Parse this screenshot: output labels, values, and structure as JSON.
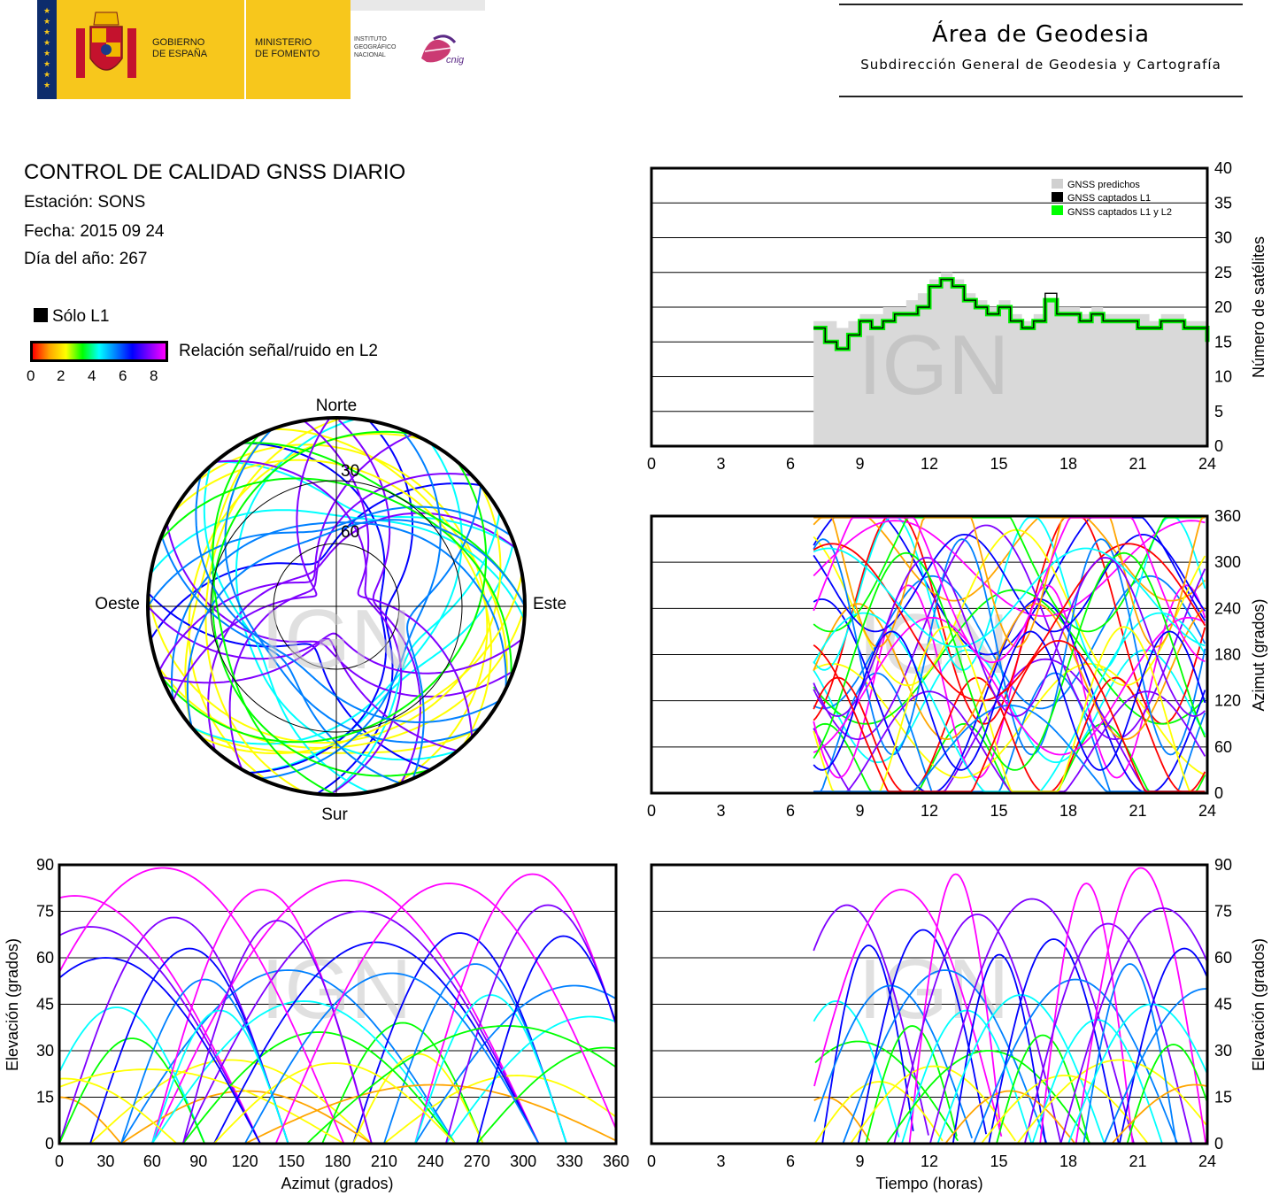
{
  "header": {
    "logo_gov_line1": "GOBIERNO",
    "logo_gov_line2": "DE ESPAÑA",
    "logo_min_line1": "MINISTERIO",
    "logo_min_line2": "DE FOMENTO",
    "logo_ign_line1": "INSTITUTO",
    "logo_ign_line2": "GEOGRÁFICO",
    "logo_ign_line3": "NACIONAL",
    "logo_cnig": "cnig",
    "area_title": "Área de Geodesia",
    "area_subtitle": "Subdirección General de Geodesia y Cartografía",
    "colors": {
      "gov_yellow": "#f7c71c",
      "flag_red": "#c4122d",
      "flag_blue": "#0d2c6c",
      "cnig_magenta": "#c2185b"
    }
  },
  "report": {
    "title": "CONTROL DE CALIDAD GNSS DIARIO",
    "station": "Estación: SONS",
    "date": "Fecha: 2015 09 24",
    "doy": "Día del año: 267"
  },
  "legend": {
    "only_l1": "Sólo L1",
    "snr_label": "Relación señal/ruido en L2",
    "snr_ticks": [
      "0",
      "2",
      "4",
      "6",
      "8"
    ],
    "snr_colors": [
      "#ff0000",
      "#ffa500",
      "#ffff00",
      "#00ff00",
      "#00ffff",
      "#0080ff",
      "#0000ff",
      "#8000ff",
      "#ff00ff"
    ]
  },
  "watermark": "IGN",
  "charts": {
    "satellites": {
      "y_ticks": [
        "0",
        "5",
        "10",
        "15",
        "20",
        "25",
        "30",
        "35",
        "40"
      ],
      "x_ticks": [
        "0",
        "3",
        "6",
        "9",
        "12",
        "15",
        "18",
        "21",
        "24"
      ],
      "ylabel": "Número de satélites",
      "legend": [
        "GNSS predichos",
        "GNSS captados L1",
        "GNSS captados L1 y L2"
      ]
    },
    "azimuth_time": {
      "y_ticks": [
        "0",
        "60",
        "120",
        "180",
        "240",
        "300",
        "360"
      ],
      "x_ticks": [
        "0",
        "3",
        "6",
        "9",
        "12",
        "15",
        "18",
        "21",
        "24"
      ],
      "ylabel": "Azimut (grados)"
    },
    "elev_azimuth": {
      "y_ticks": [
        "0",
        "15",
        "30",
        "45",
        "60",
        "75",
        "90"
      ],
      "x_ticks": [
        "0",
        "30",
        "60",
        "90",
        "120",
        "150",
        "180",
        "210",
        "240",
        "270",
        "300",
        "330",
        "360"
      ],
      "ylabel": "Elevación (grados)",
      "xlabel": "Azimut (grados)"
    },
    "elev_time": {
      "y_ticks": [
        "0",
        "15",
        "30",
        "45",
        "60",
        "75",
        "90"
      ],
      "x_ticks": [
        "0",
        "3",
        "6",
        "9",
        "12",
        "15",
        "18",
        "21",
        "24"
      ],
      "ylabel": "Elevación (grados)",
      "xlabel": "Tiempo (horas)"
    },
    "skyplot": {
      "north": "Norte",
      "south": "Sur",
      "west": "Oeste",
      "east": "Este",
      "ring_30": "30",
      "ring_60": "60"
    }
  },
  "chart_data": [
    {
      "type": "area",
      "ylabel": "Número de satélites",
      "xlim": [
        0,
        24
      ],
      "ylim": [
        0,
        40
      ],
      "series": [
        {
          "name": "GNSS predichos",
          "color": "#d9d9d9",
          "x": [
            7,
            7.5,
            8,
            8.5,
            9,
            9.5,
            10,
            10.5,
            11,
            11.5,
            12,
            12.5,
            13,
            13.5,
            14,
            14.5,
            15,
            15.5,
            16,
            16.5,
            17,
            17.5,
            18,
            18.5,
            19,
            19.5,
            20,
            20.5,
            21,
            21.5,
            22,
            22.5,
            23,
            23.5,
            24
          ],
          "values": [
            18,
            18,
            17,
            18,
            19,
            19,
            20,
            20,
            21,
            22,
            24,
            25,
            24,
            22,
            21,
            20,
            21,
            19,
            18,
            19,
            21,
            20,
            20,
            19,
            20,
            19,
            19,
            19,
            19,
            18,
            19,
            19,
            18,
            18,
            16
          ]
        },
        {
          "name": "GNSS captados L1",
          "color": "#000000",
          "x": [
            7,
            7.5,
            8,
            8.5,
            9,
            9.5,
            10,
            10.5,
            11,
            11.5,
            12,
            12.5,
            13,
            13.5,
            14,
            14.5,
            15,
            15.5,
            16,
            16.5,
            17,
            17.5,
            18,
            18.5,
            19,
            19.5,
            20,
            20.5,
            21,
            21.5,
            22,
            22.5,
            23,
            23.5,
            24
          ],
          "values": [
            17,
            15,
            14,
            16,
            18,
            17,
            18,
            19,
            19,
            20,
            23,
            24,
            23,
            21,
            20,
            19,
            20,
            18,
            17,
            18,
            22,
            19,
            19,
            18,
            19,
            18,
            18,
            18,
            17,
            17,
            18,
            18,
            17,
            17,
            15
          ]
        },
        {
          "name": "GNSS captados L1 y L2",
          "color": "#00ff00",
          "x": [
            7,
            7.5,
            8,
            8.5,
            9,
            9.5,
            10,
            10.5,
            11,
            11.5,
            12,
            12.5,
            13,
            13.5,
            14,
            14.5,
            15,
            15.5,
            16,
            16.5,
            17,
            17.5,
            18,
            18.5,
            19,
            19.5,
            20,
            20.5,
            21,
            21.5,
            22,
            22.5,
            23,
            23.5,
            24
          ],
          "values": [
            17,
            15,
            14,
            16,
            18,
            17,
            18,
            19,
            19,
            20,
            23,
            24,
            23,
            21,
            20,
            19,
            20,
            18,
            17,
            18,
            21,
            19,
            19,
            18,
            19,
            18,
            18,
            18,
            17,
            17,
            18,
            18,
            17,
            17,
            15
          ]
        }
      ]
    },
    {
      "type": "scatter",
      "ylabel": "Azimut (grados)",
      "xlim": [
        0,
        24
      ],
      "ylim": [
        0,
        360
      ]
    },
    {
      "type": "scatter",
      "xlabel": "Azimut (grados)",
      "ylabel": "Elevación (grados)",
      "xlim": [
        0,
        360
      ],
      "ylim": [
        0,
        90
      ]
    },
    {
      "type": "scatter",
      "xlabel": "Tiempo (horas)",
      "ylabel": "Elevación (grados)",
      "xlim": [
        0,
        24
      ],
      "ylim": [
        0,
        90
      ]
    }
  ]
}
